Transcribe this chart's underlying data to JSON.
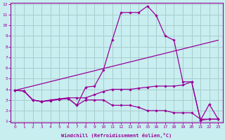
{
  "xlabel": "Windchill (Refroidissement éolien,°C)",
  "bg_color": "#c8eef0",
  "grid_color": "#aacccc",
  "line_color": "#990099",
  "xlim": [
    -0.5,
    23.5
  ],
  "ylim": [
    0.9,
    12.1
  ],
  "xticks": [
    0,
    1,
    2,
    3,
    4,
    5,
    6,
    7,
    8,
    9,
    10,
    11,
    12,
    13,
    14,
    15,
    16,
    17,
    18,
    19,
    20,
    21,
    22,
    23
  ],
  "yticks": [
    1,
    2,
    3,
    4,
    5,
    6,
    7,
    8,
    9,
    10,
    11,
    12
  ],
  "line1_x": [
    0,
    1,
    2,
    3,
    4,
    5,
    6,
    7,
    8,
    9,
    10,
    11,
    12,
    13,
    14,
    15,
    16,
    17,
    18,
    19,
    20,
    21,
    22,
    23
  ],
  "line1_y": [
    3.9,
    3.85,
    3.0,
    2.85,
    2.95,
    3.05,
    3.15,
    2.5,
    4.2,
    4.3,
    5.8,
    8.6,
    11.2,
    11.2,
    11.2,
    11.8,
    10.9,
    9.0,
    8.6,
    4.7,
    4.7,
    1.1,
    2.6,
    1.2
  ],
  "line2_x": [
    0,
    23
  ],
  "line2_y": [
    3.9,
    8.6
  ],
  "line3_x": [
    0,
    1,
    2,
    3,
    4,
    5,
    6,
    7,
    8,
    9,
    10,
    11,
    12,
    13,
    14,
    15,
    16,
    17,
    18,
    19,
    20,
    21,
    22,
    23
  ],
  "line3_y": [
    3.9,
    3.85,
    3.0,
    2.85,
    3.0,
    3.1,
    3.2,
    3.2,
    3.2,
    3.5,
    3.8,
    4.0,
    4.0,
    4.0,
    4.1,
    4.2,
    4.3,
    4.3,
    4.3,
    4.4,
    4.7,
    1.1,
    1.2,
    1.2
  ],
  "line4_x": [
    0,
    1,
    2,
    3,
    4,
    5,
    6,
    7,
    8,
    9,
    10,
    11,
    12,
    13,
    14,
    15,
    16,
    17,
    18,
    19,
    20,
    21,
    22,
    23
  ],
  "line4_y": [
    3.9,
    3.85,
    3.0,
    2.85,
    2.95,
    3.05,
    3.15,
    2.5,
    3.0,
    3.0,
    3.0,
    2.5,
    2.5,
    2.5,
    2.3,
    2.0,
    2.0,
    2.0,
    1.8,
    1.8,
    1.8,
    1.2,
    1.2,
    1.2
  ]
}
